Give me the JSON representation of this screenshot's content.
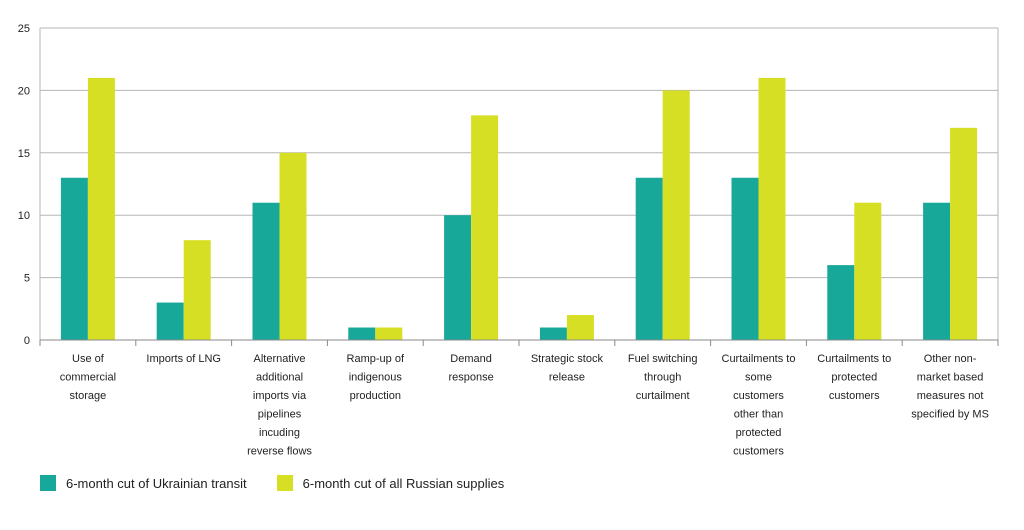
{
  "chart_data": {
    "type": "bar",
    "title": "",
    "xlabel": "",
    "ylabel": "",
    "ylim": [
      0,
      25
    ],
    "yticks": [
      0,
      5,
      10,
      15,
      20,
      25
    ],
    "grid": true,
    "legend_position": "bottom-left",
    "categories": [
      "Use of commercial storage",
      "Imports of LNG",
      "Alternative additional imports via pipelines incuding reverse flows",
      "Ramp-up of indigenous production",
      "Demand response",
      "Strategic stock release",
      "Fuel switching through curtailment",
      "Curtailments to some customers other than protected customers",
      "Curtailments to protected customers",
      "Other non-market based measures not specified by MS"
    ],
    "category_lines": [
      [
        "Use of",
        "commercial",
        "storage"
      ],
      [
        "Imports of LNG"
      ],
      [
        "Alternative",
        "additional",
        "imports via",
        "pipelines",
        "incuding",
        "reverse flows"
      ],
      [
        "Ramp-up of",
        "indigenous",
        "production"
      ],
      [
        "Demand",
        "response"
      ],
      [
        "Strategic stock",
        "release"
      ],
      [
        "Fuel switching",
        "through",
        "curtailment"
      ],
      [
        "Curtailments to",
        "some",
        "customers",
        "other than",
        "protected",
        "customers"
      ],
      [
        "Curtailments to",
        "protected",
        "customers"
      ],
      [
        "Other non-",
        "market based",
        "measures not",
        "specified by MS"
      ]
    ],
    "series": [
      {
        "name": "6-month cut of Ukrainian transit",
        "color": "#17a89a",
        "values": [
          13,
          3,
          11,
          1,
          10,
          1,
          13,
          13,
          6,
          11
        ]
      },
      {
        "name": "6-month cut of all Russian supplies",
        "color": "#d6df23",
        "values": [
          21,
          8,
          15,
          1,
          18,
          2,
          20,
          21,
          11,
          17
        ]
      }
    ]
  }
}
